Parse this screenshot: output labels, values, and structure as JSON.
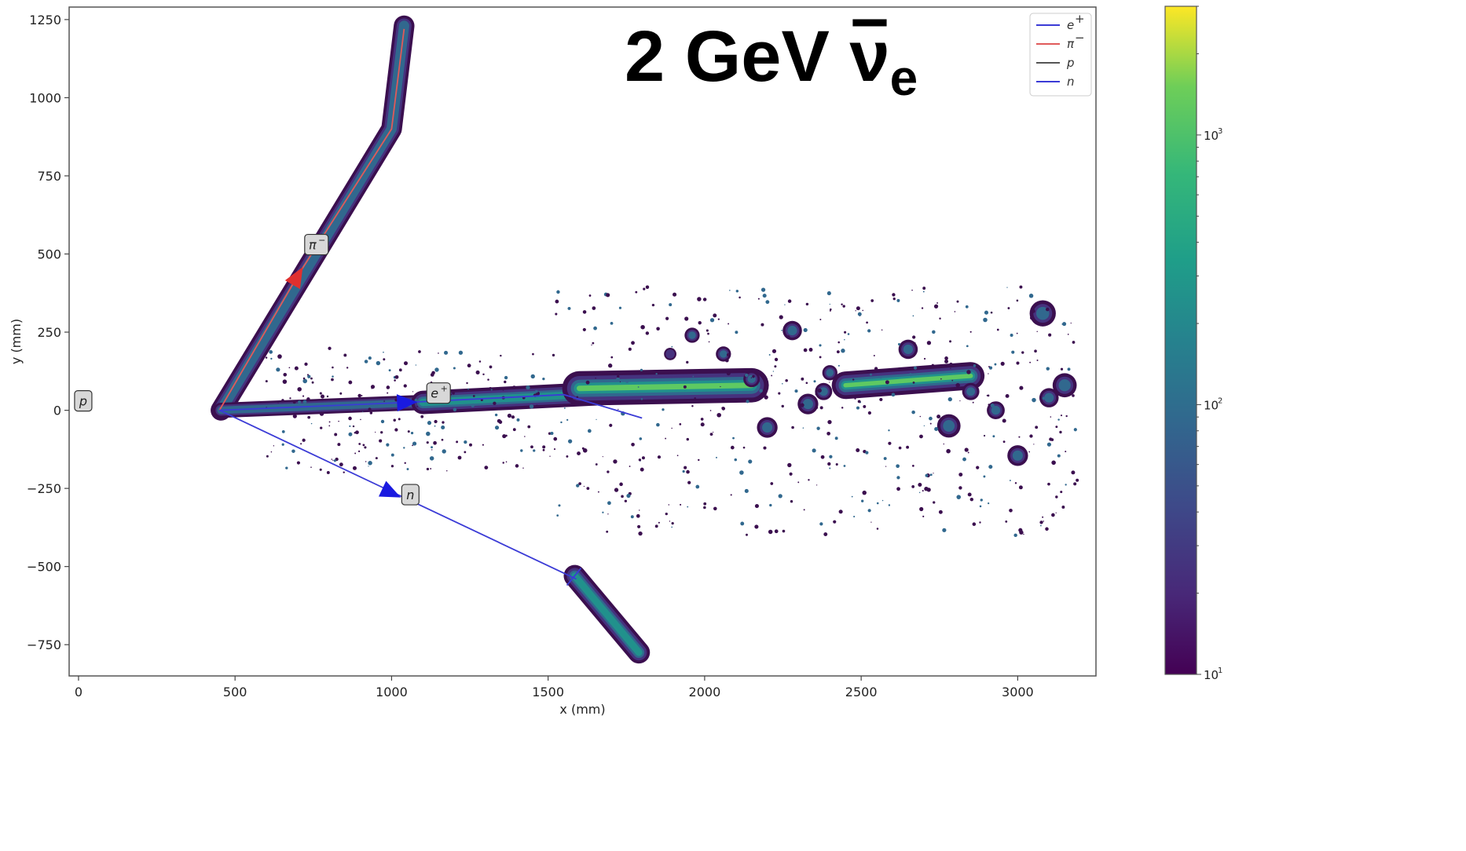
{
  "chart_data": {
    "type": "heatmap",
    "title": "2 GeV ",
    "title_symbol": "ν",
    "title_subscript": "e",
    "xlabel": "x (mm)",
    "ylabel": "y (mm)",
    "xlim": [
      -30,
      3250
    ],
    "ylim": [
      -850,
      1290
    ],
    "x_ticks": [
      0,
      500,
      1000,
      1500,
      2000,
      2500,
      3000
    ],
    "y_ticks": [
      -750,
      -500,
      -250,
      0,
      250,
      500,
      750,
      1000,
      1250
    ],
    "y_tick_labels": [
      "−750",
      "−500",
      "−250",
      "0",
      "250",
      "500",
      "750",
      "1000",
      "1250"
    ],
    "grid": false,
    "legend_placement": "top-right",
    "legend": [
      {
        "label": "e",
        "sup": "+",
        "color": "#3b3bd6"
      },
      {
        "label": "π",
        "sup": "−",
        "color": "#e05a5a"
      },
      {
        "label": "p",
        "sup": "",
        "color": "#555555"
      },
      {
        "label": "n",
        "sup": "",
        "color": "#3b3bd6"
      }
    ],
    "colorbar": {
      "scale": "log",
      "range": [
        10,
        3000
      ],
      "colormap": "viridis",
      "ticks": [
        {
          "value": 10,
          "base": "10",
          "exp": "1"
        },
        {
          "value": 100,
          "base": "10",
          "exp": "2"
        },
        {
          "value": 1000,
          "base": "10",
          "exp": "3"
        }
      ]
    },
    "vertex": [
      450,
      0
    ],
    "tracks": [
      {
        "particle": "π−",
        "color": "#e05a5a",
        "points": [
          [
            450,
            0
          ],
          [
            700,
            430
          ],
          [
            1000,
            900
          ],
          [
            1040,
            1220
          ]
        ],
        "arrow_at": [
          700,
          430
        ],
        "tag": "π",
        "tag_sup": "−",
        "tag_at": [
          760,
          530
        ]
      },
      {
        "particle": "e+",
        "color": "#3b3bd6",
        "points": [
          [
            450,
            0
          ],
          [
            1050,
            25
          ],
          [
            1550,
            50
          ],
          [
            1800,
            -25
          ]
        ],
        "arrow_at": [
          1050,
          25
        ],
        "tag": "e",
        "tag_sup": "+",
        "tag_at": [
          1150,
          55
        ]
      },
      {
        "particle": "n",
        "color": "#3b3bd6",
        "points": [
          [
            450,
            0
          ],
          [
            1590,
            -540
          ]
        ],
        "arrow_at": [
          1000,
          -265
        ],
        "tag": "n",
        "tag_sup": "",
        "tag_at": [
          1060,
          -270
        ]
      },
      {
        "particle": "p",
        "color": "#555555",
        "points": [
          [
            -10,
            5
          ],
          [
            10,
            30
          ]
        ],
        "tag": "p",
        "tag_sup": "",
        "tag_at": [
          15,
          30
        ]
      }
    ],
    "energy_deposits": [
      {
        "kind": "segment",
        "from": [
          455,
          0
        ],
        "to": [
          1040,
          1230
        ],
        "via": [
          [
            1000,
            900
          ]
        ],
        "width": 30,
        "peak": 120
      },
      {
        "kind": "segment",
        "from": [
          455,
          0
        ],
        "to": [
          1100,
          25
        ],
        "width": 22,
        "peak": 90
      },
      {
        "kind": "segment",
        "from": [
          1100,
          25
        ],
        "to": [
          1800,
          60
        ],
        "width": 34,
        "peak": 400
      },
      {
        "kind": "segment",
        "from": [
          1600,
          70
        ],
        "to": [
          2150,
          80
        ],
        "width": 50,
        "peak": 1200
      },
      {
        "kind": "segment",
        "from": [
          2450,
          80
        ],
        "to": [
          2850,
          110
        ],
        "width": 40,
        "peak": 600
      },
      {
        "kind": "segment",
        "from": [
          1585,
          -530
        ],
        "to": [
          1790,
          -775
        ],
        "width": 32,
        "peak": 250
      },
      {
        "kind": "blob",
        "at": [
          3080,
          310
        ],
        "r": 38,
        "peak": 150
      },
      {
        "kind": "blob",
        "at": [
          3000,
          -145
        ],
        "r": 30,
        "peak": 120
      },
      {
        "kind": "blob",
        "at": [
          2200,
          -55
        ],
        "r": 30,
        "peak": 110
      },
      {
        "kind": "blob",
        "at": [
          2780,
          -50
        ],
        "r": 34,
        "peak": 150
      },
      {
        "kind": "blob",
        "at": [
          2650,
          195
        ],
        "r": 28,
        "peak": 90
      },
      {
        "kind": "blob",
        "at": [
          2280,
          255
        ],
        "r": 28,
        "peak": 90
      },
      {
        "kind": "blob",
        "at": [
          1960,
          240
        ],
        "r": 22,
        "peak": 60
      },
      {
        "kind": "blob",
        "at": [
          3150,
          80
        ],
        "r": 35,
        "peak": 150
      },
      {
        "kind": "blob",
        "at": [
          2330,
          20
        ],
        "r": 30,
        "peak": 120
      },
      {
        "kind": "blob",
        "at": [
          2380,
          60
        ],
        "r": 25,
        "peak": 100
      },
      {
        "kind": "blob",
        "at": [
          2930,
          0
        ],
        "r": 26,
        "peak": 80
      },
      {
        "kind": "blob",
        "at": [
          3100,
          40
        ],
        "r": 28,
        "peak": 110
      },
      {
        "kind": "blob",
        "at": [
          2400,
          120
        ],
        "r": 22,
        "peak": 70
      },
      {
        "kind": "blob",
        "at": [
          2060,
          180
        ],
        "r": 22,
        "peak": 60
      },
      {
        "kind": "blob",
        "at": [
          1890,
          180
        ],
        "r": 18,
        "peak": 50
      },
      {
        "kind": "blob",
        "at": [
          2850,
          60
        ],
        "r": 25,
        "peak": 80
      },
      {
        "kind": "blob",
        "at": [
          2150,
          100
        ],
        "r": 24,
        "peak": 80
      }
    ]
  }
}
